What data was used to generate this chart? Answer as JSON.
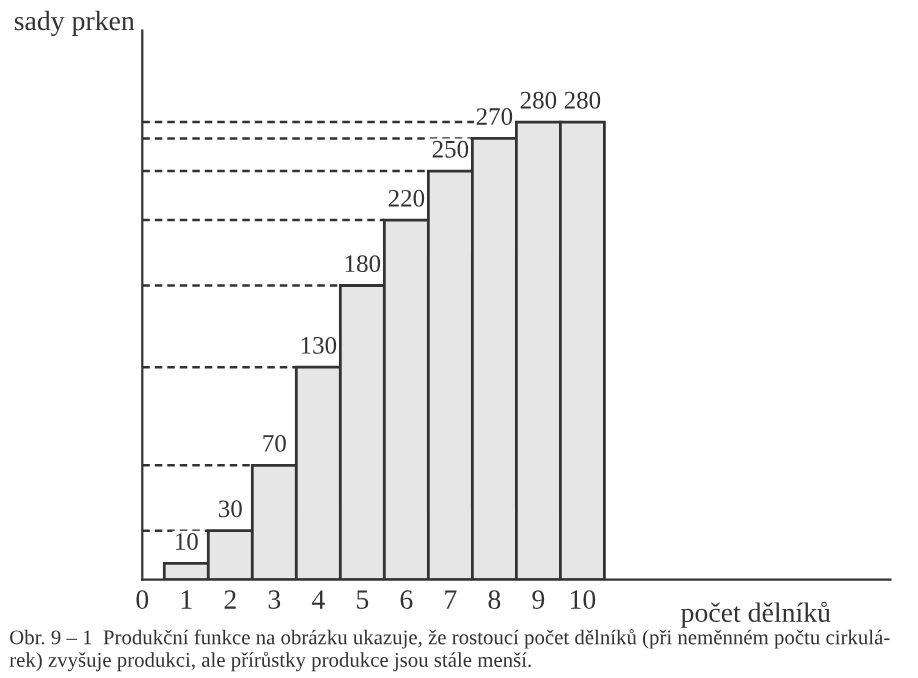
{
  "chart_data": {
    "type": "bar",
    "x": [
      1,
      2,
      3,
      4,
      5,
      6,
      7,
      8,
      9,
      10
    ],
    "values": [
      10,
      30,
      70,
      130,
      180,
      220,
      250,
      270,
      280,
      280
    ],
    "color": "#e6e6e6",
    "data_labels": true,
    "xlim": [
      0,
      17
    ],
    "xticks": [
      0,
      1,
      2,
      3,
      4,
      5,
      6,
      7,
      8,
      9,
      10
    ],
    "xlabel": "počet dělníků",
    "ylabel": "sady prken",
    "ref_lines": [
      {
        "axis": "y",
        "value": 30,
        "line_style": "dashed"
      },
      {
        "axis": "y",
        "value": 70,
        "line_style": "dashed"
      },
      {
        "axis": "y",
        "value": 130,
        "line_style": "dashed"
      },
      {
        "axis": "y",
        "value": 180,
        "line_style": "dashed"
      },
      {
        "axis": "y",
        "value": 220,
        "line_style": "dashed"
      },
      {
        "axis": "y",
        "value": 250,
        "line_style": "dashed"
      },
      {
        "axis": "y",
        "value": 270,
        "line_style": "dashed"
      },
      {
        "axis": "y",
        "value": 280,
        "line_style": "dashed"
      }
    ],
    "annotations": [
      "Obr. 9 – 1  Produkční funkce na obrázku ukazuje, že rostoucí počet dělníků (při neměnném počtu cirkulá-\nrek) zvyšuje produkci, ale přírůstky produkce jsou stále menší."
    ],
    "grid": false,
    "legend": false
  }
}
